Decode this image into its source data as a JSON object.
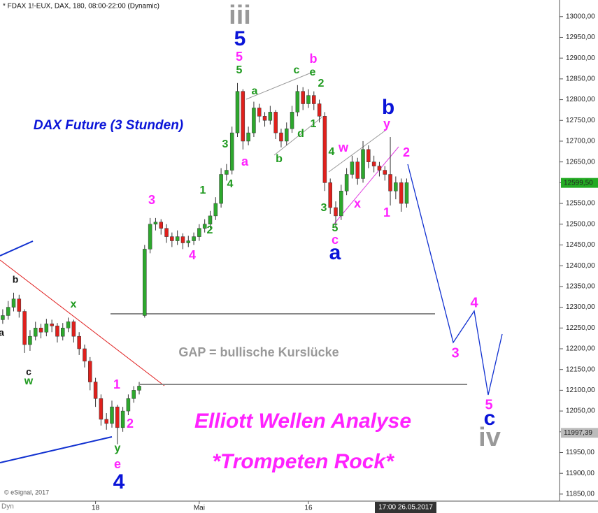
{
  "chart_data": {
    "type": "candlestick",
    "title": "* FDAX 1!-EUX, DAX, 180, 08:00-22:00 (Dynamic)",
    "up_color": "#2da82d",
    "down_color": "#e0201c",
    "x": [
      0,
      1,
      2,
      3,
      4,
      5,
      6,
      7,
      8,
      9,
      10,
      11,
      12,
      13,
      14,
      15,
      16,
      17,
      18,
      19,
      20,
      21,
      22,
      23,
      24,
      25,
      26,
      27,
      28,
      29,
      30,
      31,
      32,
      33,
      34,
      35,
      36,
      37,
      38,
      39,
      40,
      41,
      42,
      43,
      44,
      45,
      46,
      47,
      48,
      49,
      50,
      51,
      52,
      53,
      54,
      55,
      56,
      57,
      58,
      59,
      60,
      61,
      62,
      63,
      64,
      65,
      66,
      67,
      68,
      69,
      70,
      71,
      72,
      73,
      74
    ],
    "open": [
      12270,
      12280,
      12300,
      12320,
      12290,
      12210,
      12230,
      12250,
      12240,
      12260,
      12255,
      12230,
      12250,
      12265,
      12230,
      12200,
      12170,
      12120,
      12080,
      12030,
      12020,
      12060,
      12010,
      12050,
      12080,
      12100,
      12280,
      12440,
      12500,
      12505,
      12490,
      12470,
      12460,
      12470,
      12455,
      12460,
      12470,
      12490,
      12500,
      12520,
      12550,
      12620,
      12630,
      12720,
      12820,
      12700,
      12720,
      12780,
      12760,
      12750,
      12770,
      12720,
      12700,
      12730,
      12770,
      12820,
      12790,
      12810,
      12790,
      12760,
      12600,
      12540,
      12520,
      12580,
      12620,
      12650,
      12610,
      12680,
      12650,
      12640,
      12630,
      12620,
      12580,
      12600,
      12550
    ],
    "high": [
      12295,
      12315,
      12335,
      12330,
      12295,
      12245,
      12265,
      12260,
      12272,
      12270,
      12262,
      12262,
      12275,
      12270,
      12240,
      12210,
      12180,
      12130,
      12090,
      12045,
      12075,
      12065,
      12060,
      12090,
      12110,
      12120,
      12450,
      12515,
      12515,
      12512,
      12500,
      12480,
      12485,
      12478,
      12472,
      12480,
      12500,
      12512,
      12532,
      12565,
      12635,
      12645,
      12735,
      12840,
      12825,
      12735,
      12795,
      12790,
      12770,
      12785,
      12775,
      12730,
      12745,
      12785,
      12835,
      12830,
      12825,
      12820,
      12800,
      12770,
      12610,
      12555,
      12595,
      12635,
      12665,
      12660,
      12700,
      12690,
      12665,
      12650,
      12640,
      12710,
      12615,
      12610,
      12610
    ],
    "low": [
      12260,
      12270,
      12290,
      12275,
      12190,
      12195,
      12220,
      12225,
      12230,
      12240,
      12215,
      12220,
      12240,
      12215,
      12185,
      12155,
      12100,
      12060,
      12015,
      12005,
      12010,
      11970,
      12000,
      12040,
      12070,
      12090,
      12275,
      12430,
      12485,
      12475,
      12455,
      12445,
      12450,
      12440,
      12445,
      12450,
      12460,
      12480,
      12490,
      12510,
      12540,
      12605,
      12620,
      12710,
      12680,
      12690,
      12710,
      12745,
      12735,
      12740,
      12705,
      12685,
      12690,
      12720,
      12760,
      12775,
      12780,
      12775,
      12745,
      12580,
      12525,
      12495,
      12510,
      12570,
      12610,
      12595,
      12600,
      12635,
      12625,
      12615,
      12605,
      12545,
      12560,
      12530,
      12540
    ],
    "close": [
      12280,
      12300,
      12320,
      12290,
      12210,
      12230,
      12250,
      12240,
      12260,
      12255,
      12230,
      12250,
      12265,
      12230,
      12200,
      12170,
      12120,
      12080,
      12030,
      12020,
      12060,
      12010,
      12050,
      12080,
      12100,
      12110,
      12440,
      12500,
      12505,
      12490,
      12470,
      12460,
      12470,
      12455,
      12460,
      12470,
      12490,
      12500,
      12520,
      12550,
      12620,
      12630,
      12720,
      12820,
      12700,
      12720,
      12780,
      12760,
      12750,
      12770,
      12720,
      12700,
      12730,
      12770,
      12820,
      12790,
      12810,
      12790,
      12760,
      12600,
      12540,
      12520,
      12580,
      12620,
      12650,
      12610,
      12680,
      12650,
      12640,
      12630,
      12620,
      12580,
      12600,
      12550,
      12600
    ],
    "xlim": [
      -0.5,
      102
    ],
    "ylim": [
      11833,
      13040
    ],
    "xticks": [
      {
        "value": 17,
        "label": "18"
      },
      {
        "value": 36,
        "label": "Mai"
      },
      {
        "value": 56,
        "label": "16"
      }
    ],
    "yticks": [
      {
        "value": 11850,
        "label": "11850,00"
      },
      {
        "value": 11900,
        "label": "11900,00"
      },
      {
        "value": 11950,
        "label": "11950,00"
      },
      {
        "value": 12000,
        "label": "12000,00"
      },
      {
        "value": 12050,
        "label": "12050,00"
      },
      {
        "value": 12100,
        "label": "12100,00"
      },
      {
        "value": 12150,
        "label": "12150,00"
      },
      {
        "value": 12200,
        "label": "12200,00"
      },
      {
        "value": 12250,
        "label": "12250,00"
      },
      {
        "value": 12300,
        "label": "12300,00"
      },
      {
        "value": 12350,
        "label": "12350,00"
      },
      {
        "value": 12400,
        "label": "12400,00"
      },
      {
        "value": 12450,
        "label": "12450,00"
      },
      {
        "value": 12500,
        "label": "12500,00"
      },
      {
        "value": 12550,
        "label": "12550,00"
      },
      {
        "value": 12600,
        "label": "12600,00"
      },
      {
        "value": 12650,
        "label": "12650,00"
      },
      {
        "value": 12700,
        "label": "12700,00"
      },
      {
        "value": 12750,
        "label": "12750,00"
      },
      {
        "value": 12800,
        "label": "12800,00"
      },
      {
        "value": 12850,
        "label": "12850,00"
      },
      {
        "value": 12900,
        "label": "12900,00"
      },
      {
        "value": 12950,
        "label": "12950,00"
      },
      {
        "value": 13000,
        "label": "13000,00"
      }
    ],
    "price_labels": [
      {
        "value": 12599.5,
        "label": "12599,50"
      },
      {
        "value": 11997.39,
        "label": "11997,39"
      }
    ],
    "annotations": [
      "iii",
      "5",
      "5",
      "5",
      "a",
      "a",
      "3",
      "4",
      "1",
      "2",
      "3",
      "4",
      "b",
      "d",
      "1",
      "c",
      "e",
      "b",
      "2",
      "4",
      "w",
      "3",
      "x",
      "5",
      "c",
      "a",
      "b",
      "y",
      "2",
      "1",
      "4",
      "3",
      "5",
      "c",
      "iv",
      "b",
      "a",
      "c",
      "w",
      "x",
      "1",
      "2",
      "y",
      "e",
      "4",
      "DAX Future (3 Stunden)",
      "GAP = bullische Kurslücke",
      "Elliott Wellen Analyse",
      "*Trompeten Rock*"
    ],
    "footer": {
      "copyright": "© eSignal, 2017",
      "mode": "Dyn",
      "cursor_time": "17:00 26.05.2017"
    }
  }
}
